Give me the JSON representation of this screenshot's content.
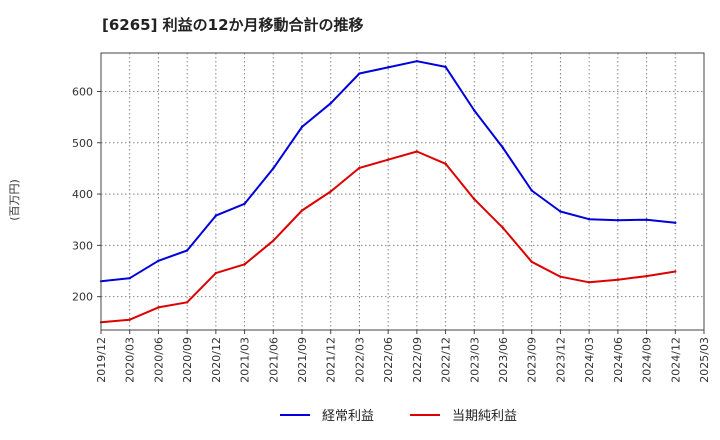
{
  "chart_data": {
    "type": "line",
    "title": "[6265]  利益の12か月移動合計の推移",
    "ylabel": "(百万円)",
    "xlabel": "",
    "ylim": [
      135,
      675
    ],
    "yticks": [
      200,
      300,
      400,
      500,
      600
    ],
    "categories": [
      "2019/12",
      "2020/03",
      "2020/06",
      "2020/09",
      "2020/12",
      "2021/03",
      "2021/06",
      "2021/09",
      "2021/12",
      "2022/03",
      "2022/06",
      "2022/09",
      "2022/12",
      "2023/03",
      "2023/06",
      "2023/09",
      "2023/12",
      "2024/03",
      "2024/06",
      "2024/09",
      "2024/12",
      "2025/03"
    ],
    "grid": true,
    "legend_position": "bottom-center",
    "series": [
      {
        "name": "経常利益",
        "color": "#0000dd",
        "values": [
          230,
          236,
          270,
          290,
          358,
          381,
          450,
          531,
          577,
          635,
          647,
          659,
          648,
          563,
          490,
          407,
          366,
          351,
          349,
          350,
          344,
          null
        ]
      },
      {
        "name": "当期純利益",
        "color": "#dd0000",
        "values": [
          150,
          155,
          179,
          189,
          246,
          263,
          309,
          368,
          405,
          451,
          467,
          483,
          459,
          390,
          334,
          268,
          239,
          228,
          233,
          240,
          249,
          null
        ]
      }
    ]
  }
}
